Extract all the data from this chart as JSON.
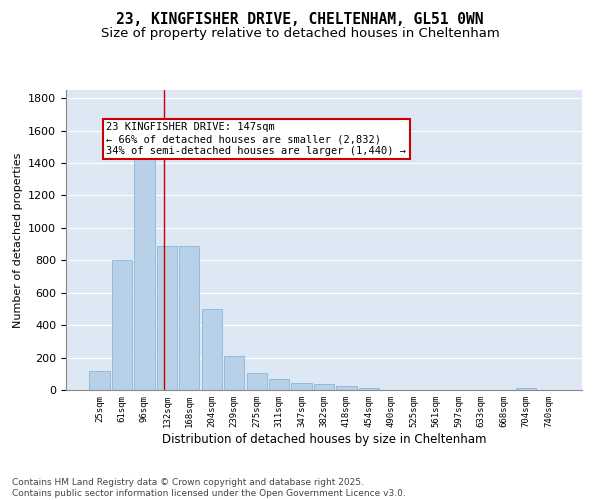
{
  "title_line1": "23, KINGFISHER DRIVE, CHELTENHAM, GL51 0WN",
  "title_line2": "Size of property relative to detached houses in Cheltenham",
  "xlabel": "Distribution of detached houses by size in Cheltenham",
  "ylabel": "Number of detached properties",
  "bar_color": "#b8d0e8",
  "bar_edge_color": "#7aafd4",
  "background_color": "#dde8f4",
  "grid_color": "#ffffff",
  "annotation_box_color": "#cc0000",
  "vline_color": "#cc0000",
  "categories": [
    "25sqm",
    "61sqm",
    "96sqm",
    "132sqm",
    "168sqm",
    "204sqm",
    "239sqm",
    "275sqm",
    "311sqm",
    "347sqm",
    "382sqm",
    "418sqm",
    "454sqm",
    "490sqm",
    "525sqm",
    "561sqm",
    "597sqm",
    "633sqm",
    "668sqm",
    "704sqm",
    "740sqm"
  ],
  "values": [
    120,
    800,
    1500,
    890,
    890,
    500,
    210,
    105,
    65,
    45,
    35,
    25,
    10,
    0,
    0,
    0,
    0,
    0,
    0,
    10,
    0
  ],
  "ylim": [
    0,
    1850
  ],
  "yticks": [
    0,
    200,
    400,
    600,
    800,
    1000,
    1200,
    1400,
    1600,
    1800
  ],
  "annotation_text": "23 KINGFISHER DRIVE: 147sqm\n← 66% of detached houses are smaller (2,832)\n34% of semi-detached houses are larger (1,440) →",
  "vline_x_index": 2.88,
  "footer_text": "Contains HM Land Registry data © Crown copyright and database right 2025.\nContains public sector information licensed under the Open Government Licence v3.0.",
  "title_fontsize": 10.5,
  "subtitle_fontsize": 9.5,
  "annotation_fontsize": 7.5,
  "footer_fontsize": 6.5,
  "ylabel_fontsize": 8,
  "xlabel_fontsize": 8.5,
  "ytick_fontsize": 8,
  "xtick_fontsize": 6.5
}
